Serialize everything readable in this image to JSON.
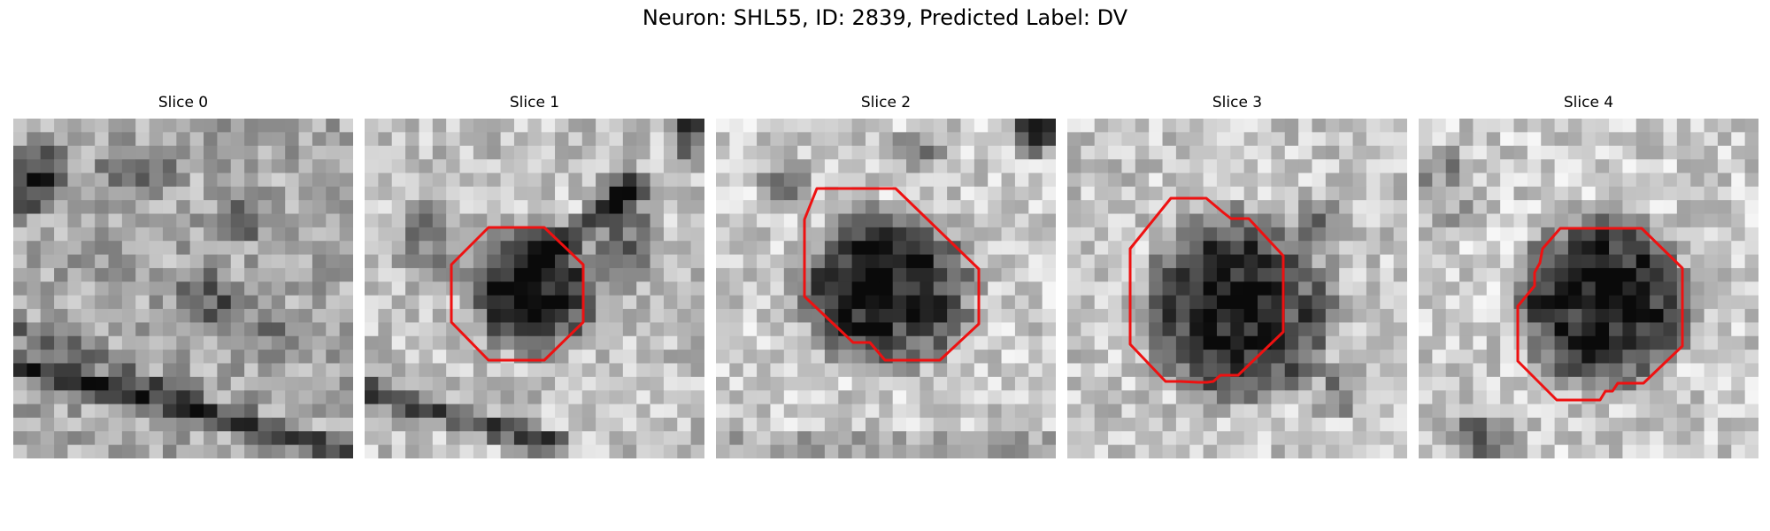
{
  "figure": {
    "suptitle": "Neuron: SHL55, ID: 2839, Predicted Label: DV"
  },
  "colors": {
    "contour": "#ee1111",
    "background": "#ffffff"
  },
  "slices": [
    {
      "title": "Slice 0",
      "has_contour": false
    },
    {
      "title": "Slice 1",
      "has_contour": true
    },
    {
      "title": "Slice 2",
      "has_contour": true
    },
    {
      "title": "Slice 3",
      "has_contour": true
    },
    {
      "title": "Slice 4",
      "has_contour": true
    }
  ]
}
